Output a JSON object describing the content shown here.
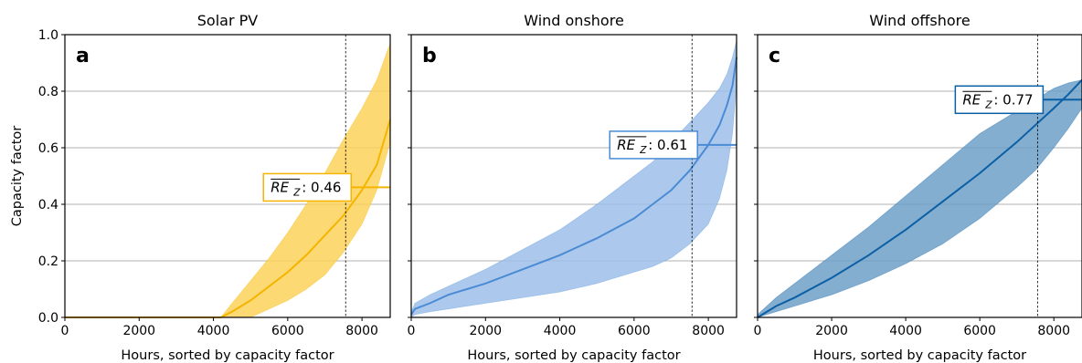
{
  "chart_data": [
    {
      "type": "area",
      "panel_letter": "a",
      "title": "Solar PV",
      "xlabel": "Hours, sorted by capacity factor",
      "ylabel": "Capacity factor",
      "xlim": [
        0,
        8760
      ],
      "ylim": [
        0,
        1.0
      ],
      "xticks": [
        0,
        2000,
        4000,
        6000,
        8000
      ],
      "yticks": [
        0,
        0.2,
        0.4,
        0.6,
        0.8,
        1.0
      ],
      "ytick_labels": [
        "0.0",
        "0.2",
        "0.4",
        "0.6",
        "0.8",
        "1.0"
      ],
      "grid_y": true,
      "color": "#f4b400",
      "fill_color": "#fbd25a",
      "vline_x": 7560,
      "annotation": {
        "label": "RE",
        "subscript": "Z",
        "text": ": 0.46",
        "value": 0.46,
        "x_start": 7560
      },
      "x": [
        0,
        1000,
        2000,
        3000,
        4000,
        4200,
        4500,
        5000,
        5500,
        6000,
        6500,
        7000,
        7500,
        8000,
        8400,
        8760
      ],
      "lower": [
        0,
        0,
        0,
        0,
        0,
        0,
        0.0,
        0.0,
        0.03,
        0.06,
        0.1,
        0.15,
        0.23,
        0.33,
        0.45,
        0.62
      ],
      "median": [
        0,
        0,
        0,
        0,
        0,
        0.0,
        0.02,
        0.06,
        0.11,
        0.16,
        0.22,
        0.29,
        0.36,
        0.45,
        0.54,
        0.7
      ],
      "upper": [
        0,
        0,
        0,
        0,
        0,
        0.0,
        0.05,
        0.13,
        0.21,
        0.3,
        0.4,
        0.51,
        0.63,
        0.74,
        0.84,
        0.97
      ]
    },
    {
      "type": "area",
      "panel_letter": "b",
      "title": "Wind onshore",
      "xlabel": "Hours, sorted by capacity factor",
      "xlim": [
        0,
        8760
      ],
      "ylim": [
        0,
        1.0
      ],
      "xticks": [
        0,
        2000,
        4000,
        6000,
        8000
      ],
      "grid_y": true,
      "color": "#4a8bd4",
      "fill_color": "#9dc0ea",
      "vline_x": 7560,
      "annotation": {
        "label": "RE",
        "subscript": "Z",
        "text": ": 0.61",
        "value": 0.61,
        "x_start": 7560
      },
      "x": [
        0,
        100,
        500,
        1000,
        2000,
        3000,
        4000,
        5000,
        6000,
        6500,
        7000,
        7500,
        8000,
        8300,
        8500,
        8650,
        8760
      ],
      "lower": [
        0.0,
        0.01,
        0.02,
        0.03,
        0.05,
        0.07,
        0.09,
        0.12,
        0.16,
        0.18,
        0.21,
        0.26,
        0.33,
        0.42,
        0.52,
        0.65,
        0.82
      ],
      "median": [
        0.01,
        0.03,
        0.05,
        0.08,
        0.12,
        0.17,
        0.22,
        0.28,
        0.35,
        0.4,
        0.45,
        0.52,
        0.61,
        0.68,
        0.75,
        0.82,
        0.92
      ],
      "upper": [
        0.02,
        0.05,
        0.08,
        0.11,
        0.17,
        0.24,
        0.31,
        0.4,
        0.5,
        0.55,
        0.62,
        0.69,
        0.76,
        0.81,
        0.86,
        0.92,
        0.98
      ]
    },
    {
      "type": "area",
      "panel_letter": "c",
      "title": "Wind offshore",
      "xlabel": "Hours, sorted by capacity factor",
      "xlim": [
        0,
        8760
      ],
      "ylim": [
        0,
        1.0
      ],
      "xticks": [
        0,
        2000,
        4000,
        6000,
        8000
      ],
      "grid_y": true,
      "color": "#0b5fa5",
      "fill_color": "#6fa0c8",
      "vline_x": 7560,
      "annotation": {
        "label": "RE",
        "subscript": "Z",
        "text": ": 0.77",
        "value": 0.77,
        "x_start": 7560
      },
      "x": [
        0,
        500,
        1000,
        2000,
        3000,
        4000,
        5000,
        6000,
        7000,
        7500,
        8000,
        8400,
        8760
      ],
      "lower": [
        0.0,
        0.02,
        0.04,
        0.08,
        0.13,
        0.19,
        0.26,
        0.35,
        0.46,
        0.52,
        0.6,
        0.67,
        0.74
      ],
      "median": [
        0.0,
        0.04,
        0.07,
        0.14,
        0.22,
        0.31,
        0.41,
        0.51,
        0.62,
        0.68,
        0.74,
        0.79,
        0.84
      ],
      "upper": [
        0.01,
        0.07,
        0.12,
        0.22,
        0.32,
        0.43,
        0.54,
        0.65,
        0.73,
        0.77,
        0.81,
        0.83,
        0.84
      ]
    }
  ]
}
